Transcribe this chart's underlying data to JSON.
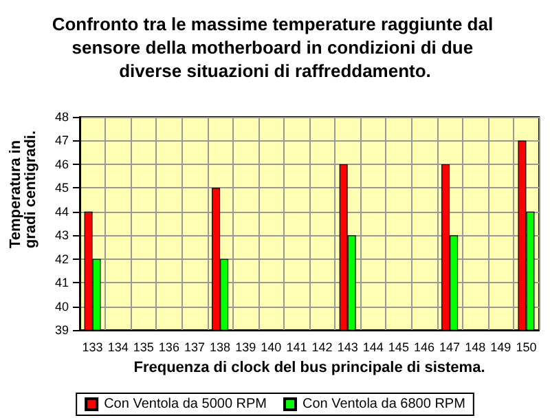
{
  "chart_data": {
    "type": "bar",
    "title": "Confronto tra le massime temperature raggiunte dal sensore della motherboard in condizioni di due diverse situazioni di raffreddamento.",
    "xlabel": "Frequenza di clock del bus principale di sistema.",
    "ylabel": "Temperatura in gradi centigradi.",
    "categories": [
      "133",
      "134",
      "135",
      "136",
      "137",
      "138",
      "139",
      "140",
      "141",
      "142",
      "143",
      "144",
      "145",
      "146",
      "147",
      "148",
      "149",
      "150"
    ],
    "series": [
      {
        "name": "Con Ventola da 5000 RPM",
        "color": "#ff0000",
        "values": [
          44,
          null,
          null,
          null,
          null,
          45,
          null,
          null,
          null,
          null,
          46,
          null,
          null,
          null,
          46,
          null,
          null,
          47
        ]
      },
      {
        "name": "Con Ventola da 6800 RPM",
        "color": "#00ff00",
        "values": [
          42,
          null,
          null,
          null,
          null,
          42,
          null,
          null,
          null,
          null,
          43,
          null,
          null,
          null,
          43,
          null,
          null,
          44
        ]
      }
    ],
    "ylim": [
      39,
      48
    ],
    "yticks": [
      39,
      40,
      41,
      42,
      43,
      44,
      45,
      46,
      47,
      48
    ],
    "grid": true,
    "legend": "bottom"
  }
}
